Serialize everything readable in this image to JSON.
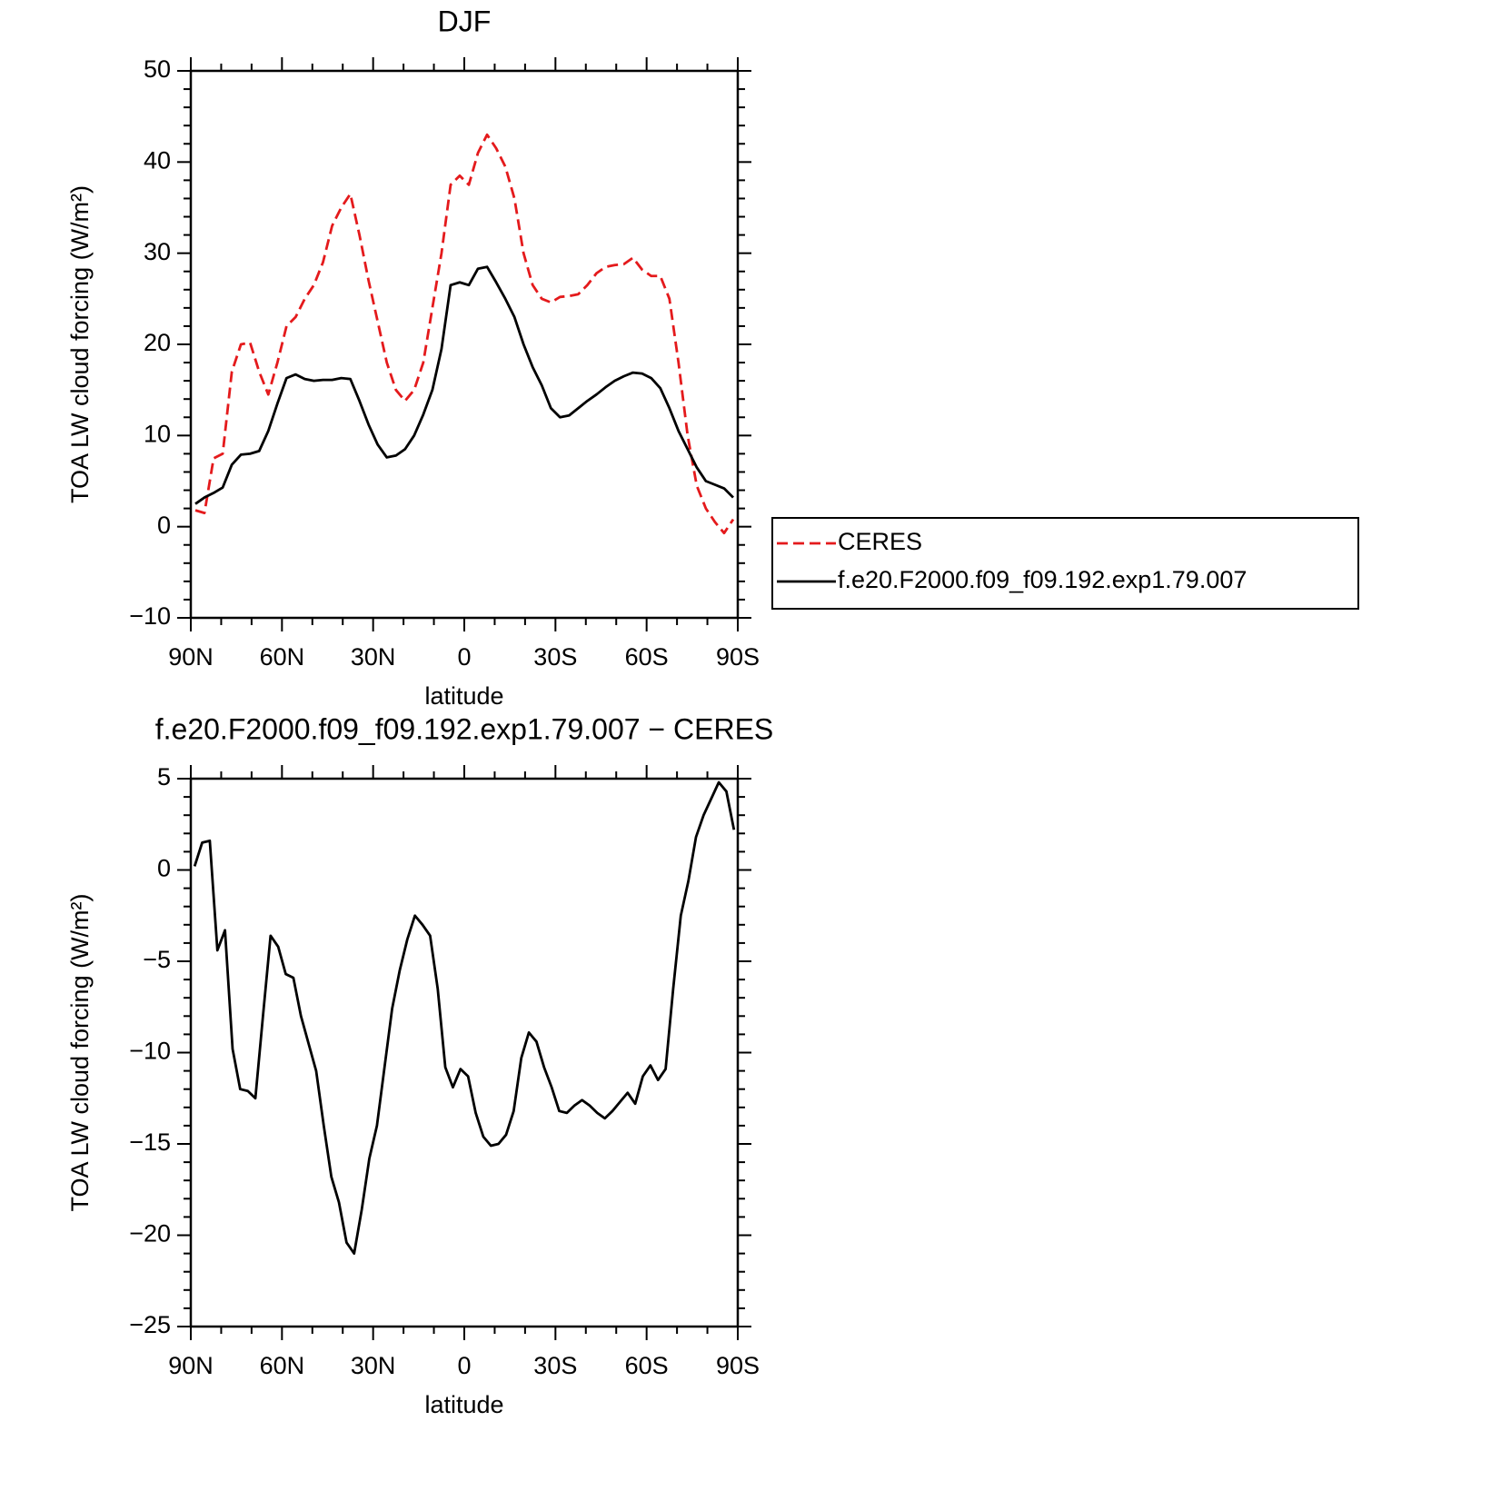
{
  "chart_data": [
    {
      "type": "line",
      "title": "DJF",
      "xlabel": "latitude",
      "ylabel": "TOA LW cloud forcing (W/m²)",
      "x": [
        88.5,
        85.5,
        82.5,
        79.5,
        76.5,
        73.5,
        70.5,
        67.5,
        64.5,
        61.5,
        58.5,
        55.5,
        52.5,
        49.5,
        46.5,
        43.5,
        40.5,
        37.5,
        34.5,
        31.5,
        28.5,
        25.5,
        22.5,
        19.5,
        16.5,
        13.5,
        10.5,
        7.5,
        4.5,
        1.5,
        -1.5,
        -4.5,
        -7.5,
        -10.5,
        -13.5,
        -16.5,
        -19.5,
        -22.5,
        -25.5,
        -28.5,
        -31.5,
        -34.5,
        -37.5,
        -40.5,
        -43.5,
        -46.5,
        -49.5,
        -52.5,
        -55.5,
        -58.5,
        -61.5,
        -64.5,
        -67.5,
        -70.5,
        -73.5,
        -76.5,
        -79.5,
        -82.5,
        -85.5,
        -88.5
      ],
      "series": [
        {
          "name": "CERES",
          "color": "#e41a1c",
          "style": "dashed",
          "values": [
            1.8,
            1.5,
            7.5,
            8,
            17,
            20,
            20.2,
            17,
            14.5,
            18,
            22,
            23,
            25,
            26.5,
            29,
            33,
            35,
            36.5,
            32,
            27,
            22.5,
            18,
            15,
            13.8,
            15,
            18,
            24,
            30,
            37.5,
            38.5,
            37.5,
            41,
            43,
            41.5,
            39.5,
            36,
            30,
            26.5,
            25,
            24.6,
            25.2,
            25.3,
            25.5,
            26.5,
            27.8,
            28.5,
            28.7,
            28.8,
            29.5,
            28.2,
            27.5,
            27.5,
            25,
            18,
            10,
            4.5,
            2,
            0.5,
            -0.7,
            0.8
          ]
        },
        {
          "name": "f.e20.F2000.f09_f09.192.exp1.79.007",
          "color": "#000000",
          "style": "solid",
          "values": [
            2.5,
            3.2,
            3.7,
            4.3,
            6.8,
            7.9,
            8,
            8.3,
            10.5,
            13.5,
            16.3,
            16.7,
            16.2,
            16,
            16.1,
            16.1,
            16.3,
            16.2,
            13.8,
            11.2,
            9,
            7.6,
            7.8,
            8.5,
            10,
            12.3,
            15,
            19.5,
            26.5,
            26.8,
            26.5,
            28.3,
            28.5,
            26.8,
            25,
            23,
            20,
            17.5,
            15.5,
            13,
            12,
            12.2,
            13,
            13.8,
            14.5,
            15.3,
            16,
            16.5,
            16.9,
            16.8,
            16.3,
            15.2,
            13,
            10.5,
            8.5,
            6.5,
            5,
            4.6,
            4.2,
            3.2
          ]
        }
      ],
      "xlim": [
        90,
        -90
      ],
      "xticks": [
        {
          "value": 90,
          "label": "90N"
        },
        {
          "value": 60,
          "label": "60N"
        },
        {
          "value": 30,
          "label": "30N"
        },
        0,
        {
          "value": -30,
          "label": "30S"
        },
        {
          "value": -60,
          "label": "60S"
        },
        {
          "value": -90,
          "label": "90S"
        }
      ],
      "ylim": [
        -10,
        50
      ],
      "yticks": [
        {
          "value": -10,
          "label": "−10"
        },
        0,
        10,
        20,
        30,
        40,
        50
      ],
      "xminor": 3,
      "yminor": 5,
      "legend": "right"
    },
    {
      "type": "line",
      "title": "f.e20.F2000.f09_f09.192.exp1.79.007 − CERES",
      "xlabel": "latitude",
      "ylabel": "TOA LW cloud forcing (W/m²)",
      "x": [
        88.75,
        86.25,
        83.75,
        81.25,
        78.75,
        76.25,
        73.75,
        71.25,
        68.75,
        66.25,
        63.75,
        61.25,
        58.75,
        56.25,
        53.75,
        51.25,
        48.75,
        46.25,
        43.75,
        41.25,
        38.75,
        36.25,
        33.75,
        31.25,
        28.75,
        26.25,
        23.75,
        21.25,
        18.75,
        16.25,
        13.75,
        11.25,
        8.75,
        6.25,
        3.75,
        1.25,
        -1.25,
        -3.75,
        -6.25,
        -8.75,
        -11.25,
        -13.75,
        -16.25,
        -18.75,
        -21.25,
        -23.75,
        -26.25,
        -28.75,
        -31.25,
        -33.75,
        -36.25,
        -38.75,
        -41.25,
        -43.75,
        -46.25,
        -48.75,
        -51.25,
        -53.75,
        -56.25,
        -58.75,
        -61.25,
        -63.75,
        -66.25,
        -68.75,
        -71.25,
        -73.75,
        -76.25,
        -78.75,
        -81.25,
        -83.75,
        -86.25,
        -88.75
      ],
      "values": [
        0.2,
        1.5,
        1.6,
        -4.4,
        -3.3,
        -9.8,
        -12,
        -12.1,
        -12.5,
        -8,
        -3.6,
        -4.2,
        -5.7,
        -5.9,
        -8,
        -9.5,
        -11,
        -14,
        -16.8,
        -18.2,
        -20.4,
        -21,
        -18.6,
        -15.8,
        -14,
        -10.8,
        -7.6,
        -5.5,
        -3.8,
        -2.5,
        -3,
        -3.6,
        -6.5,
        -10.8,
        -11.9,
        -10.9,
        -11.3,
        -13.3,
        -14.6,
        -15.1,
        -15,
        -14.5,
        -13.2,
        -10.3,
        -8.9,
        -9.4,
        -10.8,
        -11.9,
        -13.2,
        -13.3,
        -12.9,
        -12.6,
        -12.9,
        -13.3,
        -13.6,
        -13.2,
        -12.7,
        -12.2,
        -12.8,
        -11.3,
        -10.7,
        -11.5,
        -10.9,
        -6.5,
        -2.5,
        -0.6,
        1.8,
        3,
        3.9,
        4.8,
        4.3,
        2.2
      ],
      "color": "#000000",
      "xlim": [
        90,
        -90
      ],
      "xticks": [
        {
          "value": 90,
          "label": "90N"
        },
        {
          "value": 60,
          "label": "60N"
        },
        {
          "value": 30,
          "label": "30N"
        },
        0,
        {
          "value": -30,
          "label": "30S"
        },
        {
          "value": -60,
          "label": "60S"
        },
        {
          "value": -90,
          "label": "90S"
        }
      ],
      "ylim": [
        -25,
        5
      ],
      "yticks": [
        {
          "value": -25,
          "label": "−25"
        },
        {
          "value": -20,
          "label": "−20"
        },
        {
          "value": -15,
          "label": "−15"
        },
        {
          "value": -10,
          "label": "−10"
        },
        {
          "value": -5,
          "label": "−5"
        },
        0,
        5
      ],
      "xminor": 3,
      "yminor": 5
    }
  ]
}
